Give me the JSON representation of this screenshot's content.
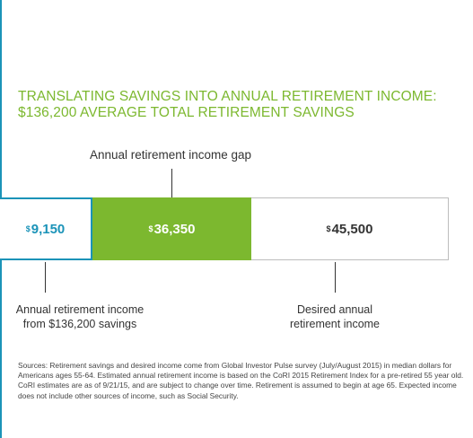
{
  "title": {
    "line1": "TRANSLATING SAVINGS INTO ANNUAL RETIREMENT INCOME:",
    "line2": "$136,200 AVERAGE TOTAL RETIREMENT SAVINGS"
  },
  "chart_data": {
    "type": "bar",
    "orientation": "horizontal-stacked",
    "title": "TRANSLATING SAVINGS INTO ANNUAL RETIREMENT INCOME: $136,200 AVERAGE TOTAL RETIREMENT SAVINGS",
    "segments": [
      {
        "value": 9150,
        "currency": "$",
        "amount": "9,150"
      },
      {
        "value": 36350,
        "currency": "$",
        "amount": "36,350"
      },
      {
        "value": 45500,
        "currency": "$",
        "amount": "45,500"
      }
    ],
    "annotations": [
      "Annual retirement income gap",
      "Annual retirement income from $136,200 savings",
      "Desired annual retirement income"
    ],
    "colors": {
      "blue": "#1b93b8",
      "green": "#7cb82f",
      "grey": "#bdbdbd"
    }
  },
  "labels": {
    "gap": "Annual retirement income gap",
    "income_line1": "Annual retirement income",
    "income_line2": "from $136,200 savings",
    "desired_line1": "Desired annual",
    "desired_line2": "retirement income"
  },
  "sources": "Sources: Retirement savings and desired income come from Global Investor Pulse survey (July/August 2015) in median dollars for Americans ages 55-64. Estimated annual retirement income is based on the CoRI 2015 Retirement Index for a pre-retired 55 year old. CoRI estimates are as of 9/21/15, and are subject to change over time. Retirement is assumed to begin at age 65. Expected income does not include other sources of income, such as Social Security."
}
